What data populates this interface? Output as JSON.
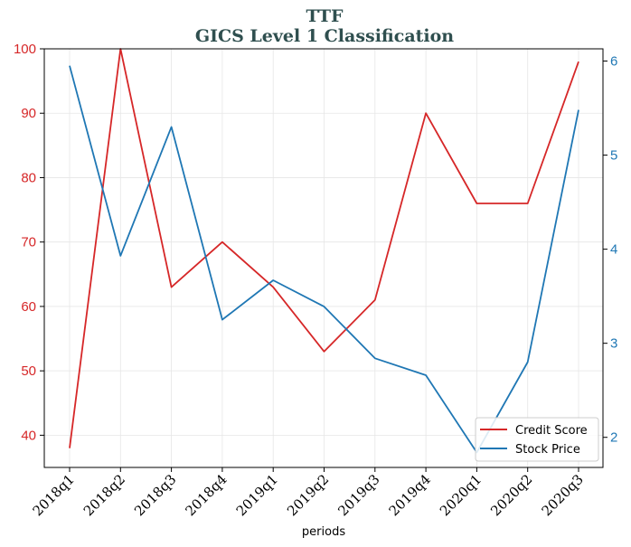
{
  "chart_data": {
    "type": "line",
    "title": "TTF",
    "subtitle": "GICS Level 1 Classification",
    "xlabel": "periods",
    "categories": [
      "2018q1",
      "2018q2",
      "2018q3",
      "2018q4",
      "2019q1",
      "2019q2",
      "2019q3",
      "2019q4",
      "2020q1",
      "2020q2",
      "2020q3"
    ],
    "y_left": {
      "lim": [
        35,
        100
      ],
      "ticks": [
        40,
        50,
        60,
        70,
        80,
        90,
        100
      ],
      "color": "#d62728"
    },
    "y_right": {
      "lim": [
        1.68,
        6.13
      ],
      "ticks": [
        2,
        3,
        4,
        5,
        6
      ],
      "color": "#1f77b4"
    },
    "grid": true,
    "legend_position": "lower-right",
    "series": [
      {
        "name": "Credit Score",
        "axis": "left",
        "color": "#d62728",
        "values": [
          38,
          100,
          63,
          70,
          63,
          53,
          61,
          90,
          76,
          76,
          98
        ]
      },
      {
        "name": "Stock Price",
        "axis": "right",
        "color": "#1f77b4",
        "values": [
          5.95,
          3.93,
          5.3,
          3.25,
          3.67,
          3.39,
          2.84,
          2.66,
          1.84,
          2.8,
          5.48
        ]
      }
    ]
  }
}
